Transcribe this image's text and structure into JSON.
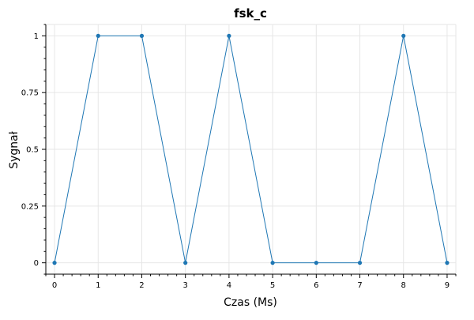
{
  "chart_data": {
    "type": "line",
    "title": "fsk_c",
    "xlabel": "Czas (Ms)",
    "ylabel": "Sygnał",
    "xlim": [
      -0.2,
      9.2
    ],
    "ylim": [
      -0.05,
      1.05
    ],
    "x_ticks": [
      0,
      1,
      2,
      3,
      4,
      5,
      6,
      7,
      8,
      9
    ],
    "x_tick_labels": [
      "0",
      "1",
      "2",
      "3",
      "4",
      "5",
      "6",
      "7",
      "8",
      "9"
    ],
    "y_ticks": [
      0,
      0.25,
      0.5,
      0.75,
      1
    ],
    "y_tick_labels": [
      "0",
      "0.25",
      "0.5",
      "0.75",
      "1"
    ],
    "grid": true,
    "series": [
      {
        "x": [
          0,
          1,
          2,
          3,
          4,
          5,
          6,
          7,
          8,
          9
        ],
        "values": [
          0,
          1,
          1,
          0,
          1,
          0,
          0,
          0,
          1,
          0
        ],
        "color": "#1f77b4",
        "markers": true
      }
    ]
  }
}
